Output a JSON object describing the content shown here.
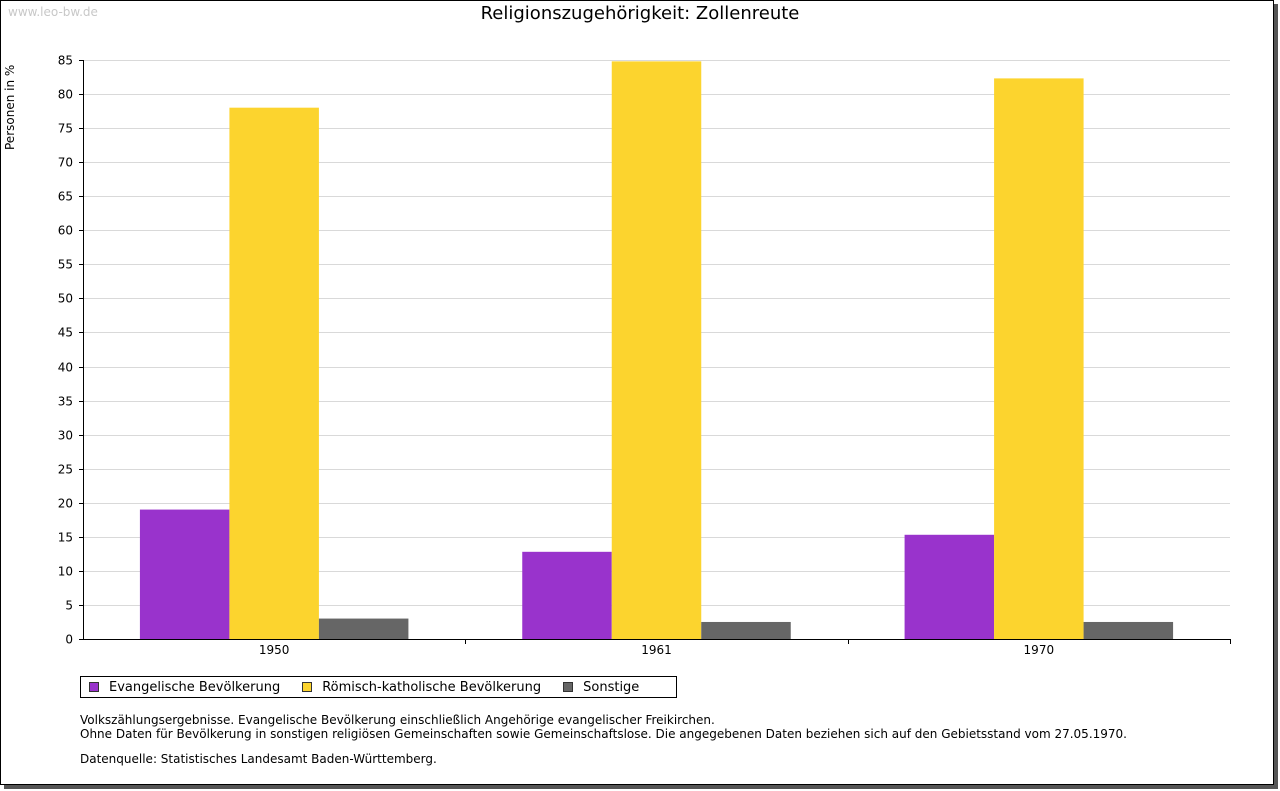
{
  "watermark": "www.leo-bw.de",
  "chart_data": {
    "type": "bar",
    "title": "Religionszugehörigkeit: Zollenreute",
    "ylabel": "Personen in %",
    "xlabel": "",
    "ylim": [
      0,
      85
    ],
    "yticks": [
      0,
      5,
      10,
      15,
      20,
      25,
      30,
      35,
      40,
      45,
      50,
      55,
      60,
      65,
      70,
      75,
      80,
      85
    ],
    "categories": [
      "1950",
      "1961",
      "1970"
    ],
    "series": [
      {
        "name": "Evangelische Bevölkerung",
        "color": "#9933cc",
        "values": [
          19.0,
          12.8,
          15.3
        ]
      },
      {
        "name": "Römisch-katholische Bevölkerung",
        "color": "#fcd42e",
        "values": [
          78.0,
          84.8,
          82.3
        ]
      },
      {
        "name": "Sonstige",
        "color": "#666666",
        "values": [
          3.0,
          2.5,
          2.5
        ]
      }
    ],
    "grid": true,
    "legend": "bottom-left"
  },
  "notes": {
    "line1": "Volkszählungsergebnisse. Evangelische Bevölkerung einschließlich Angehörige evangelischer Freikirchen.",
    "line2": "Ohne Daten für Bevölkerung in sonstigen religiösen Gemeinschaften sowie Gemeinschaftslose. Die angegebenen Daten beziehen sich auf den Gebietsstand vom 27.05.1970."
  },
  "source": "Datenquelle: Statistisches Landesamt Baden-Württemberg."
}
